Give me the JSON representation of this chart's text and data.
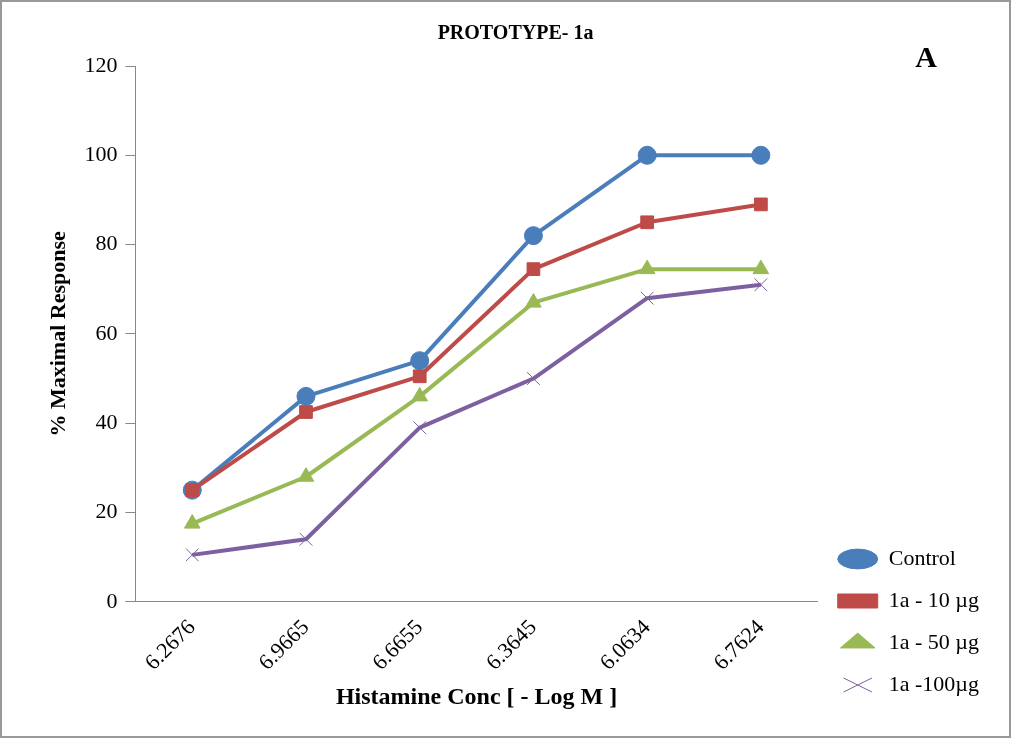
{
  "chart_data": {
    "type": "line",
    "title": "PROTOTYPE- 1a",
    "xlabel": "Histamine Conc [ - Log M ]",
    "ylabel": "% Maximal Response",
    "annotations": [
      "A"
    ],
    "categories": [
      "6.2676",
      "6.9665",
      "6.6655",
      "6.3645",
      "6.0634",
      "6.7624"
    ],
    "ylim": [
      0,
      120
    ],
    "yticks": [
      0,
      20,
      40,
      60,
      80,
      100,
      120
    ],
    "grid": false,
    "legend": "right",
    "series": [
      {
        "name": "Control",
        "color": "#4a7ebb",
        "marker": "circle",
        "values": [
          25,
          46,
          54,
          82,
          100,
          100
        ]
      },
      {
        "name": "1a - 10 µg",
        "color": "#be4b48",
        "marker": "square",
        "values": [
          25,
          42.5,
          50.5,
          74.5,
          85,
          89
        ]
      },
      {
        "name": "1a - 50 µg",
        "color": "#98b954",
        "marker": "triangle",
        "values": [
          17.5,
          28,
          46,
          67,
          74.5,
          74.5
        ]
      },
      {
        "name": "1a -100µg",
        "color": "#7d60a0",
        "marker": "cross",
        "values": [
          10.5,
          14,
          39,
          50,
          68,
          71
        ]
      }
    ]
  }
}
